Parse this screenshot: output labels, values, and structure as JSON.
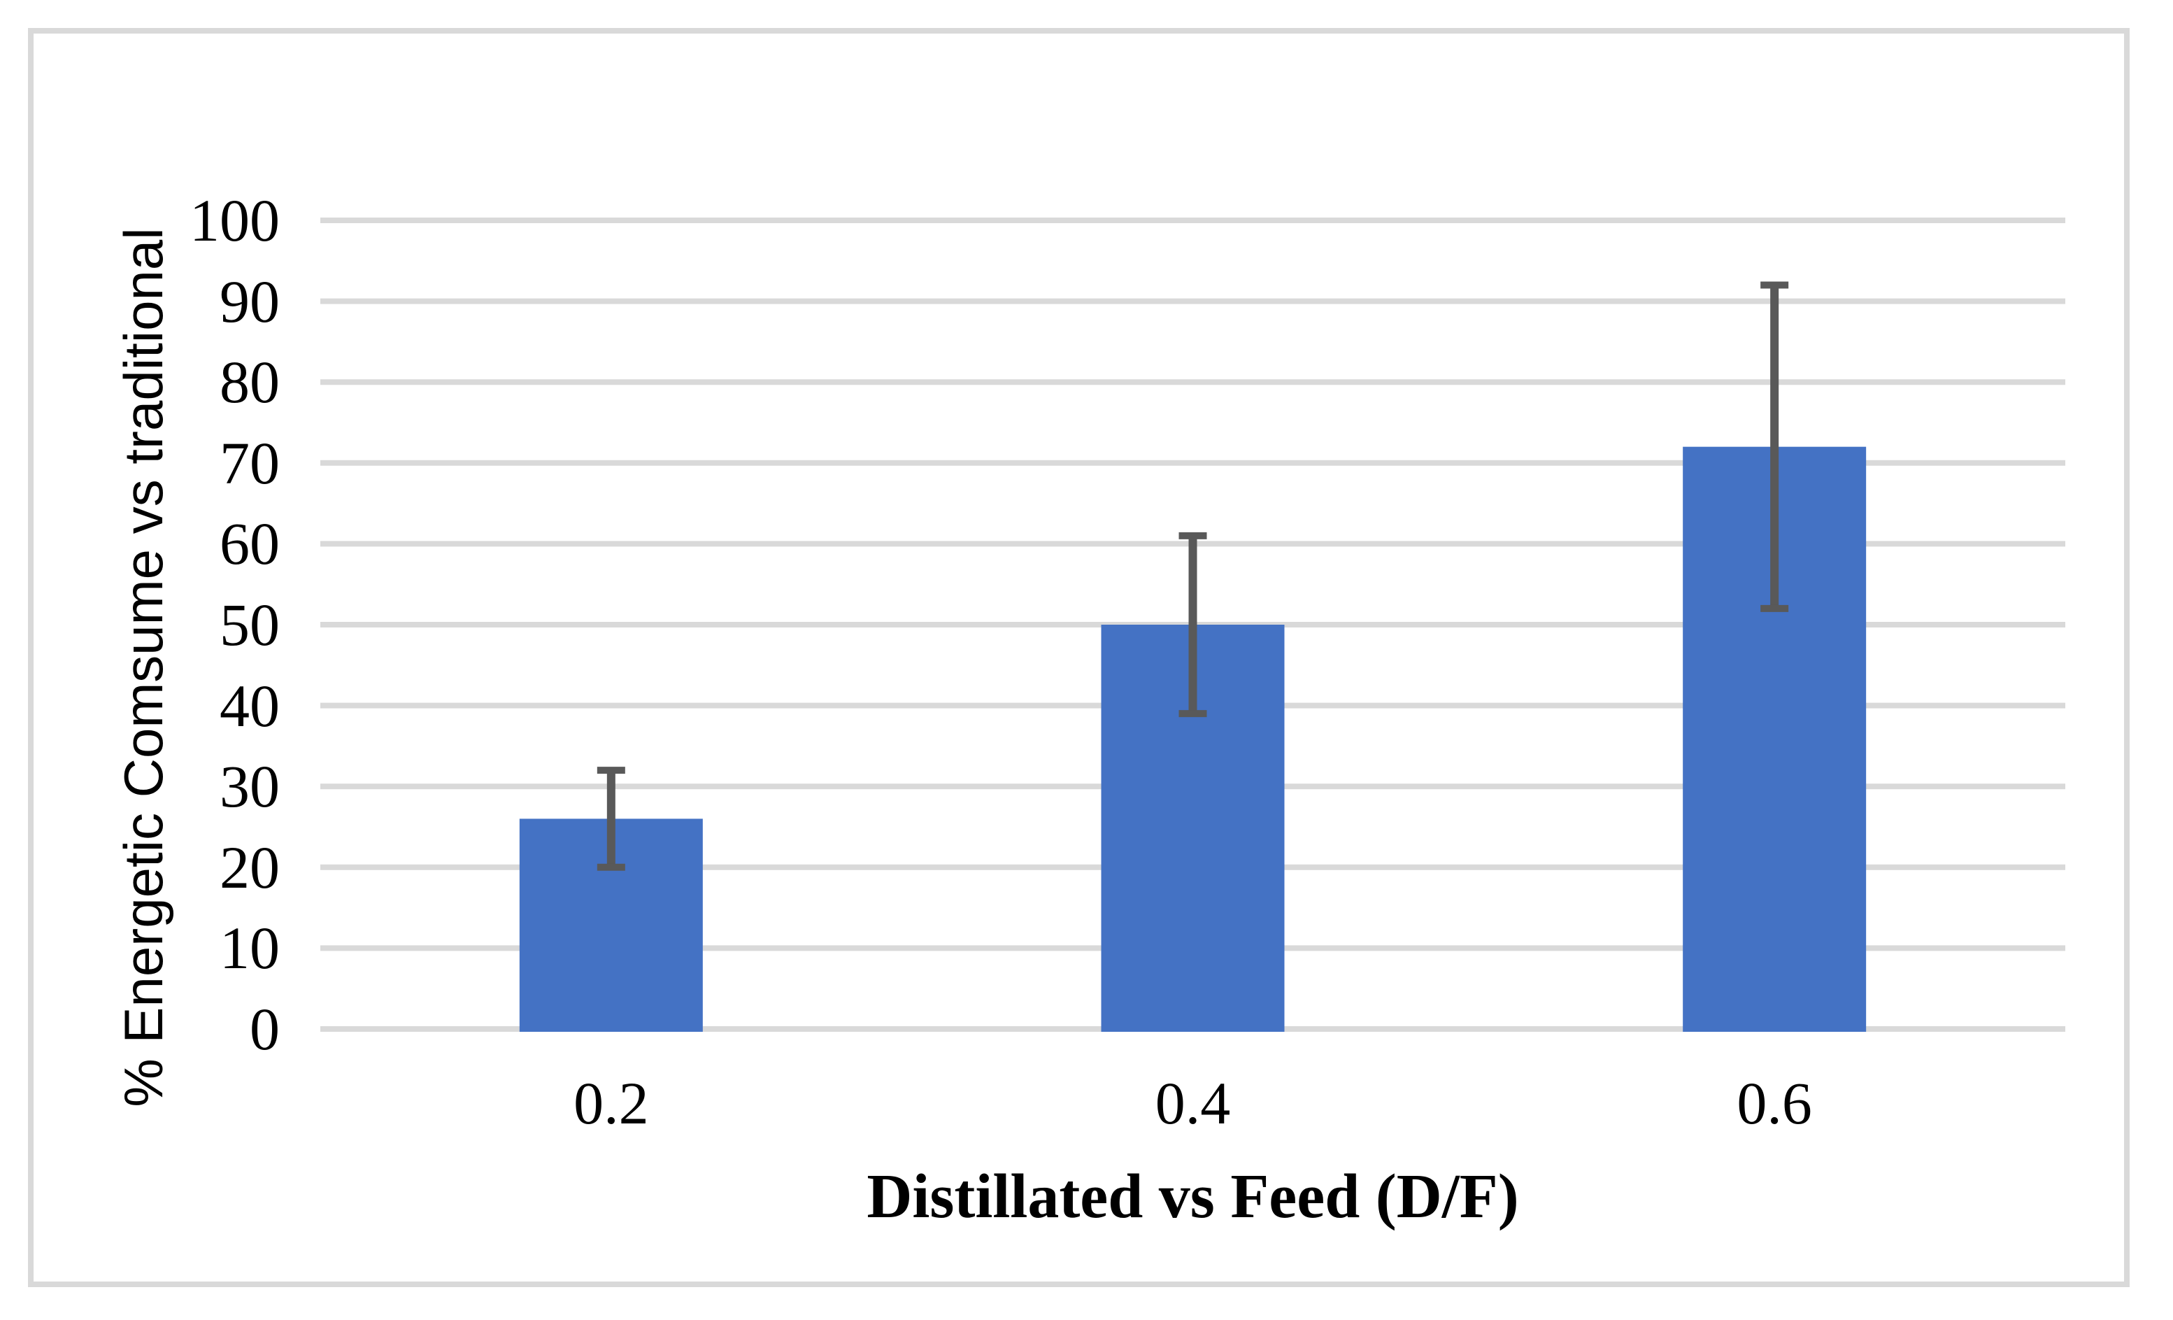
{
  "chart_data": {
    "type": "bar",
    "title": "",
    "xlabel": "Distillated vs Feed (D/F)",
    "ylabel": "% Energetic Comsume vs traditional",
    "categories": [
      "0.2",
      "0.4",
      "0.6"
    ],
    "values": [
      26,
      50,
      72
    ],
    "error_plus": [
      6,
      11,
      20
    ],
    "error_minus": [
      6,
      11,
      20
    ],
    "error_bar_tops": [
      32,
      61,
      92
    ],
    "error_bar_bottoms": [
      20,
      39,
      52
    ],
    "y_ticks": [
      "0",
      "10",
      "20",
      "30",
      "40",
      "50",
      "60",
      "70",
      "80",
      "90",
      "100"
    ],
    "ylim": [
      0,
      100
    ],
    "grid": "horizontal-only",
    "legend": "none",
    "colors": {
      "bar_fill": "#4472C4",
      "error_bar": "#595959",
      "gridline": "#D9D9D9",
      "figure_border": "#D9D9D9",
      "text": "#000000",
      "background": "#FFFFFF"
    }
  }
}
